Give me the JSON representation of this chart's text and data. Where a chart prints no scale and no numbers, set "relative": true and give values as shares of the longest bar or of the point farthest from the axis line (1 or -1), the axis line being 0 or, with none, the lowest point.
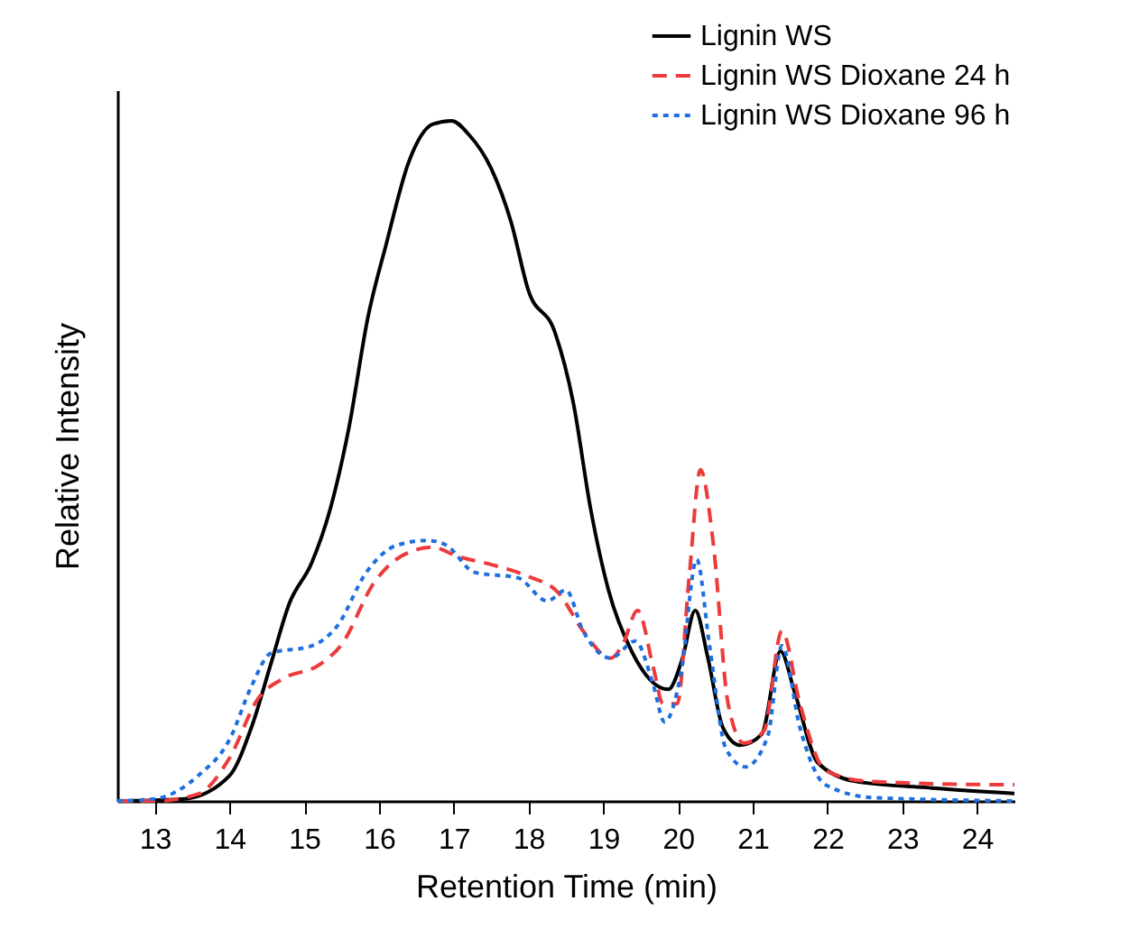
{
  "chart_data": {
    "type": "line",
    "relative": true,
    "xlabel": "Retention Time (min)",
    "ylabel": "Relative Intensity",
    "xlim": [
      12.5,
      24.5
    ],
    "xticks": [
      13,
      14,
      15,
      16,
      17,
      18,
      19,
      20,
      21,
      22,
      23,
      24
    ],
    "legend": "top right",
    "grid": false,
    "marker": "none",
    "series": [
      {
        "name": "Lignin WS",
        "color": "#000000",
        "line_style": "solid",
        "x": [
          12.5,
          13.0,
          13.4,
          14.0,
          14.3,
          14.55,
          14.8,
          15.1,
          15.35,
          15.6,
          15.85,
          16.1,
          16.4,
          16.72,
          16.97,
          17.2,
          17.5,
          17.77,
          18.0,
          18.35,
          18.6,
          18.83,
          19.07,
          19.38,
          19.87,
          20.06,
          20.23,
          20.4,
          20.6,
          20.83,
          21.12,
          21.37,
          21.56,
          21.87,
          22.36,
          23.4,
          24.5
        ],
        "values": [
          0,
          0.001,
          0.003,
          0.037,
          0.11,
          0.2,
          0.29,
          0.35,
          0.43,
          0.55,
          0.71,
          0.82,
          0.94,
          0.995,
          1,
          0.98,
          0.93,
          0.85,
          0.75,
          0.69,
          0.585,
          0.43,
          0.31,
          0.22,
          0.164,
          0.21,
          0.28,
          0.21,
          0.108,
          0.082,
          0.098,
          0.22,
          0.16,
          0.056,
          0.029,
          0.019,
          0.011
        ]
      },
      {
        "name": "Lignin WS Dioxane 24 h",
        "color": "#ee3a3a",
        "line_style": "dashed",
        "x": [
          12.5,
          13.0,
          13.58,
          14.0,
          14.38,
          14.72,
          15.2,
          15.5,
          15.93,
          16.3,
          16.72,
          17.04,
          17.52,
          18.0,
          18.4,
          18.73,
          19.1,
          19.26,
          19.46,
          19.67,
          19.8,
          19.99,
          20.15,
          20.3,
          20.47,
          20.67,
          20.88,
          21.15,
          21.39,
          21.63,
          21.97,
          22.53,
          24.3,
          24.5
        ],
        "values": [
          0,
          0,
          0.01,
          0.063,
          0.15,
          0.18,
          0.2,
          0.23,
          0.32,
          0.36,
          0.373,
          0.36,
          0.347,
          0.33,
          0.306,
          0.25,
          0.21,
          0.23,
          0.28,
          0.196,
          0.143,
          0.143,
          0.33,
          0.487,
          0.38,
          0.143,
          0.085,
          0.103,
          0.25,
          0.143,
          0.045,
          0.029,
          0.024,
          0.024
        ]
      },
      {
        "name": "Lignin WS Dioxane 96 h",
        "color": "#1f6fdf",
        "line_style": "dotted",
        "x": [
          12.5,
          13.0,
          13.58,
          14.0,
          14.3,
          14.55,
          15.1,
          15.44,
          15.83,
          16.24,
          16.65,
          16.9,
          17.28,
          17.86,
          18.25,
          18.5,
          18.73,
          19.1,
          19.43,
          19.67,
          19.82,
          20.04,
          20.25,
          20.42,
          20.64,
          20.9,
          21.2,
          21.39,
          21.63,
          21.97,
          22.6,
          24.5
        ],
        "values": [
          0,
          0.003,
          0.037,
          0.09,
          0.17,
          0.217,
          0.228,
          0.257,
          0.336,
          0.376,
          0.383,
          0.376,
          0.336,
          0.328,
          0.294,
          0.31,
          0.25,
          0.21,
          0.235,
          0.17,
          0.116,
          0.188,
          0.355,
          0.23,
          0.077,
          0.05,
          0.095,
          0.228,
          0.108,
          0.024,
          0.005,
          0
        ]
      }
    ]
  }
}
